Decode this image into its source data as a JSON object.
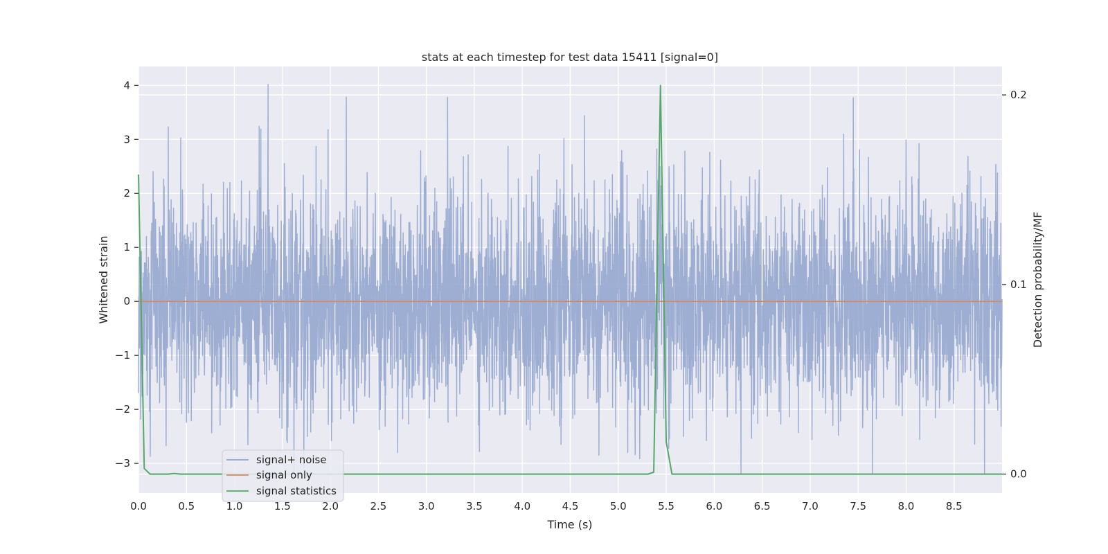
{
  "chart_data": {
    "type": "line",
    "title": "stats at each timestep for test data 15411 [signal=0]",
    "xlabel": "Time (s)",
    "ylabel": "Whitened strain",
    "y2label": "Detection probability/MF",
    "xlim": [
      0.0,
      9.0
    ],
    "ylim": [
      -3.55,
      4.35
    ],
    "y2lim": [
      -0.01,
      0.215
    ],
    "xticks": [
      "0.0",
      "0.5",
      "1.0",
      "1.5",
      "2.0",
      "2.5",
      "3.0",
      "3.5",
      "4.0",
      "4.5",
      "5.0",
      "5.5",
      "6.0",
      "6.5",
      "7.0",
      "7.5",
      "8.0",
      "8.5"
    ],
    "yticks": [
      "4",
      "3",
      "2",
      "1",
      "0",
      "−1",
      "−2",
      "−3"
    ],
    "y2ticks": [
      "0.2",
      "0.1",
      "0.0"
    ],
    "grid": true,
    "legend_position": "lower-left",
    "series": [
      {
        "name": "signal+ noise",
        "color": "#8fa3cc",
        "noise_amplitude": 1.0,
        "notable_peaks": [
          {
            "x": 0.31,
            "y": 3.23
          },
          {
            "x": 1.35,
            "y": 4.02
          },
          {
            "x": 1.85,
            "y": 2.87
          },
          {
            "x": 3.22,
            "y": 3.78
          },
          {
            "x": 4.65,
            "y": 3.44
          },
          {
            "x": 7.35,
            "y": 3.1
          },
          {
            "x": 7.45,
            "y": 3.77
          },
          {
            "x": 8.0,
            "y": 2.99
          },
          {
            "x": 6.28,
            "y": -3.2
          },
          {
            "x": 7.65,
            "y": -3.2
          },
          {
            "x": 2.7,
            "y": -2.8
          },
          {
            "x": 4.8,
            "y": -2.85
          },
          {
            "x": 5.1,
            "y": -2.8
          }
        ]
      },
      {
        "name": "signal only",
        "color": "#dd8452",
        "x": [
          0.0,
          9.0
        ],
        "y": [
          0.0,
          0.0
        ]
      },
      {
        "name": "signal statistics",
        "color": "#55a868",
        "axis": "right",
        "x": [
          0.0,
          0.06,
          0.12,
          0.19,
          0.25,
          0.31,
          0.37,
          0.44,
          0.5,
          5.25,
          5.31,
          5.37,
          5.44,
          5.5,
          5.56,
          5.62,
          5.69,
          9.0
        ],
        "y": [
          0.158,
          0.003,
          0.0,
          0.0,
          0.0,
          0.0,
          0.0003,
          0.0,
          0.0,
          0.0,
          0.0,
          0.001,
          0.205,
          0.017,
          0.0,
          0.0,
          0.0,
          0.0
        ]
      }
    ]
  }
}
